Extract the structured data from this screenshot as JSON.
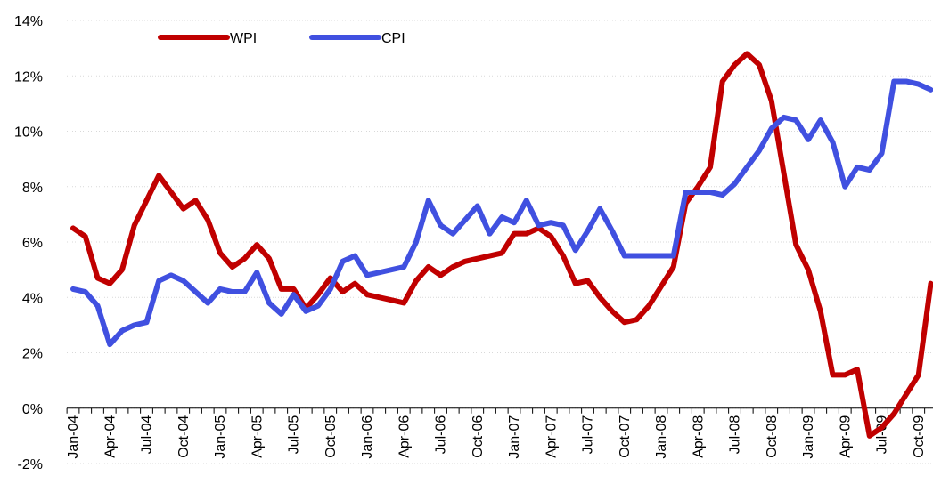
{
  "chart_data": {
    "type": "line",
    "categories": [
      "Jan-04",
      null,
      null,
      "Apr-04",
      null,
      null,
      "Jul-04",
      null,
      null,
      "Oct-04",
      null,
      null,
      "Jan-05",
      null,
      null,
      "Apr-05",
      null,
      null,
      "Jul-05",
      null,
      null,
      "Oct-05",
      null,
      null,
      "Jan-06",
      null,
      null,
      "Apr-06",
      null,
      null,
      "Jul-06",
      null,
      null,
      "Oct-06",
      null,
      null,
      "Jan-07",
      null,
      null,
      "Apr-07",
      null,
      null,
      "Jul-07",
      null,
      null,
      "Oct-07",
      null,
      null,
      "Jan-08",
      null,
      null,
      "Apr-08",
      null,
      null,
      "Jul-08",
      null,
      null,
      "Oct-08",
      null,
      null,
      "Jan-09",
      null,
      null,
      "Apr-09",
      null,
      null,
      "Jul-09",
      null,
      null,
      "Oct-09",
      null
    ],
    "series": [
      {
        "name": "WPI",
        "color": "#c00000",
        "values": [
          6.5,
          6.2,
          4.7,
          4.5,
          5.0,
          6.6,
          7.5,
          8.4,
          7.8,
          7.2,
          7.5,
          6.8,
          5.6,
          5.1,
          5.4,
          5.9,
          5.4,
          4.3,
          4.3,
          3.6,
          4.1,
          4.7,
          4.2,
          4.5,
          4.1,
          4.0,
          3.9,
          3.8,
          4.6,
          5.1,
          4.8,
          5.1,
          5.3,
          5.4,
          5.5,
          5.6,
          6.3,
          6.3,
          6.5,
          6.2,
          5.5,
          4.5,
          4.6,
          4.0,
          3.5,
          3.1,
          3.2,
          3.7,
          4.4,
          5.1,
          7.4,
          8.0,
          8.7,
          11.8,
          12.4,
          12.8,
          12.4,
          11.1,
          8.5,
          5.9,
          5.0,
          3.5,
          1.2,
          1.2,
          1.4,
          -1.0,
          -0.7,
          -0.2,
          0.5,
          1.2,
          4.5
        ]
      },
      {
        "name": "CPI",
        "color": "#4050e0",
        "values": [
          4.3,
          4.2,
          3.7,
          2.3,
          2.8,
          3.0,
          3.1,
          4.6,
          4.8,
          4.6,
          4.2,
          3.8,
          4.3,
          4.2,
          4.2,
          4.9,
          3.8,
          3.4,
          4.1,
          3.5,
          3.7,
          4.3,
          5.3,
          5.5,
          4.8,
          4.9,
          5.0,
          5.1,
          6.0,
          7.5,
          6.6,
          6.3,
          6.8,
          7.3,
          6.3,
          6.9,
          6.7,
          7.5,
          6.6,
          6.7,
          6.6,
          5.7,
          6.4,
          7.2,
          6.4,
          5.5,
          5.5,
          5.5,
          5.5,
          5.5,
          7.8,
          7.8,
          7.8,
          7.7,
          8.1,
          8.7,
          9.3,
          10.1,
          10.5,
          10.4,
          9.7,
          10.4,
          9.6,
          8.0,
          8.7,
          8.6,
          9.2,
          11.8,
          11.8,
          11.7,
          11.5
        ]
      }
    ],
    "ylim": [
      -2,
      14
    ],
    "yticks": [
      {
        "value": -2,
        "label": "-2%"
      },
      {
        "value": 0,
        "label": "0%"
      },
      {
        "value": 2,
        "label": "2%"
      },
      {
        "value": 4,
        "label": "4%"
      },
      {
        "value": 6,
        "label": "6%"
      },
      {
        "value": 8,
        "label": "8%"
      },
      {
        "value": 10,
        "label": "10%"
      },
      {
        "value": 12,
        "label": "12%"
      },
      {
        "value": 14,
        "label": "14%"
      }
    ],
    "grid": true,
    "legend": "top"
  }
}
